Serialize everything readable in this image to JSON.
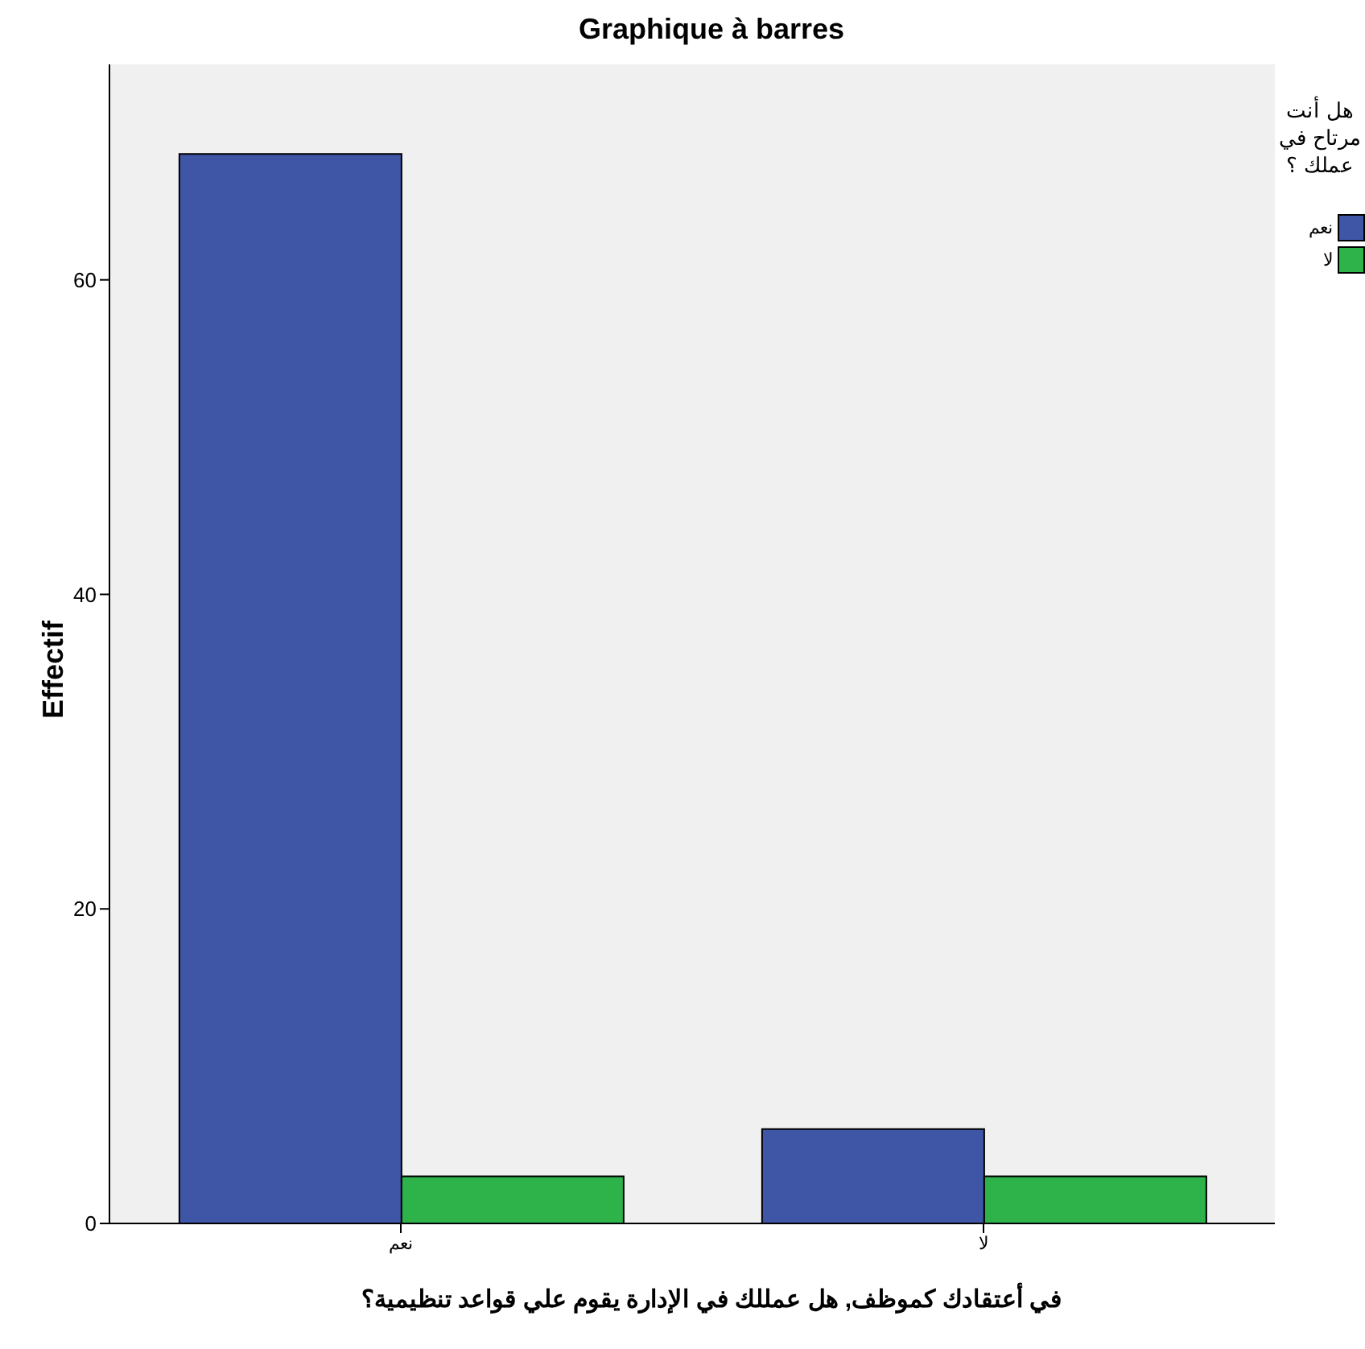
{
  "chart_data": {
    "type": "bar",
    "title": "Graphique à barres",
    "xlabel": "في أعتقادك كموظف, هل عمللك في الإدارة يقوم علي قواعد تنظيمية؟",
    "ylabel": "Effectif",
    "legend_title": "هل أنت مرتاح في عملك ؟",
    "categories": [
      "نعم",
      "لا"
    ],
    "series": [
      {
        "name": "نعم",
        "color": "#3f55a5",
        "values": [
          68,
          6
        ]
      },
      {
        "name": "لا",
        "color": "#2db34a",
        "values": [
          3,
          3
        ]
      }
    ],
    "ylim": [
      0,
      73.7
    ],
    "yticks": [
      0,
      20,
      40,
      60
    ],
    "grid": false,
    "legend": "top right"
  }
}
